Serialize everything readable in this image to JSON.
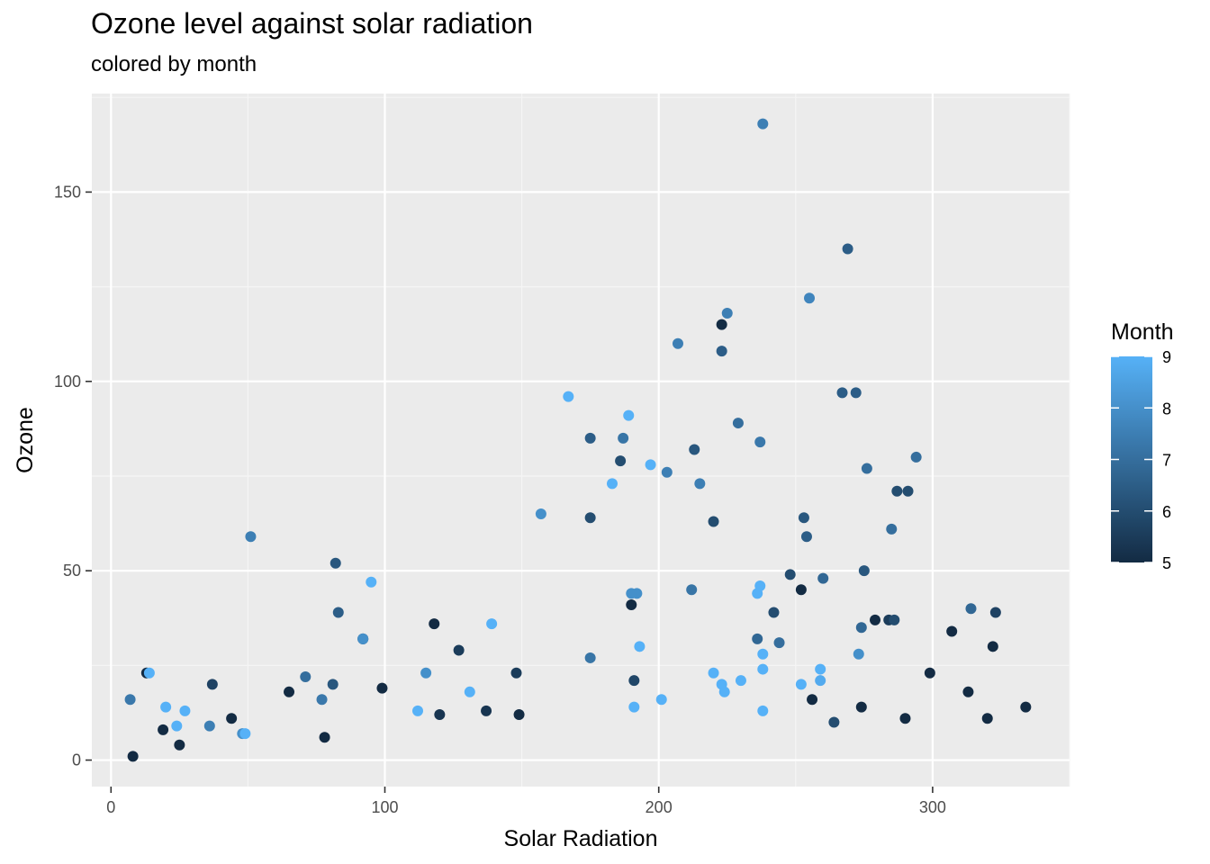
{
  "chart_data": {
    "type": "scatter",
    "title": "Ozone level against solar radiation",
    "subtitle": "colored by month",
    "xlabel": "Solar Radiation",
    "ylabel": "Ozone",
    "xlim": [
      -7,
      350
    ],
    "ylim": [
      -7,
      176
    ],
    "xticks": [
      0,
      100,
      200,
      300
    ],
    "yticks": [
      0,
      50,
      100,
      150
    ],
    "grid": true,
    "legend": {
      "title": "Month",
      "placement": "right",
      "min": 5,
      "max": 9,
      "ticks": [
        5,
        6,
        7,
        8,
        9
      ],
      "color_low": "#132B43",
      "color_high": "#56B1F7"
    },
    "colors": {
      "panel_background": "#EBEBEB",
      "grid_major": "#FFFFFF",
      "grid_minor": "#F5F5F5"
    },
    "points": [
      {
        "x": 190,
        "y": 41,
        "month": 5
      },
      {
        "x": 118,
        "y": 36,
        "month": 5
      },
      {
        "x": 149,
        "y": 12,
        "month": 5
      },
      {
        "x": 313,
        "y": 18,
        "month": 5
      },
      {
        "x": 299,
        "y": 23,
        "month": 5
      },
      {
        "x": 99,
        "y": 19,
        "month": 5
      },
      {
        "x": 19,
        "y": 8,
        "month": 5
      },
      {
        "x": 256,
        "y": 16,
        "month": 5
      },
      {
        "x": 290,
        "y": 11,
        "month": 5
      },
      {
        "x": 274,
        "y": 14,
        "month": 5
      },
      {
        "x": 65,
        "y": 18,
        "month": 5
      },
      {
        "x": 334,
        "y": 14,
        "month": 5
      },
      {
        "x": 307,
        "y": 34,
        "month": 5
      },
      {
        "x": 78,
        "y": 6,
        "month": 5
      },
      {
        "x": 322,
        "y": 30,
        "month": 5
      },
      {
        "x": 44,
        "y": 11,
        "month": 5
      },
      {
        "x": 8,
        "y": 1,
        "month": 5
      },
      {
        "x": 320,
        "y": 11,
        "month": 5
      },
      {
        "x": 25,
        "y": 4,
        "month": 5
      },
      {
        "x": 92,
        "y": 32,
        "month": 5
      },
      {
        "x": 13,
        "y": 23,
        "month": 5
      },
      {
        "x": 252,
        "y": 45,
        "month": 5
      },
      {
        "x": 223,
        "y": 115,
        "month": 5
      },
      {
        "x": 279,
        "y": 37,
        "month": 5
      },
      {
        "x": 120,
        "y": 12,
        "month": 5.3
      },
      {
        "x": 137,
        "y": 13,
        "month": 5.3
      },
      {
        "x": 148,
        "y": 23,
        "month": 5.5
      },
      {
        "x": 127,
        "y": 29,
        "month": 5.5
      },
      {
        "x": 284,
        "y": 37,
        "month": 5.5
      },
      {
        "x": 323,
        "y": 39,
        "month": 5.7
      },
      {
        "x": 37,
        "y": 20,
        "month": 5.7
      },
      {
        "x": 191,
        "y": 21,
        "month": 5.8
      },
      {
        "x": 286,
        "y": 37,
        "month": 6
      },
      {
        "x": 287,
        "y": 71,
        "month": 6
      },
      {
        "x": 242,
        "y": 39,
        "month": 6
      },
      {
        "x": 186,
        "y": 79,
        "month": 6
      },
      {
        "x": 220,
        "y": 63,
        "month": 6
      },
      {
        "x": 264,
        "y": 10,
        "month": 6
      },
      {
        "x": 175,
        "y": 64,
        "month": 6
      },
      {
        "x": 248,
        "y": 49,
        "month": 6
      },
      {
        "x": 291,
        "y": 71,
        "month": 6
      },
      {
        "x": 81,
        "y": 20,
        "month": 6.3
      },
      {
        "x": 82,
        "y": 52,
        "month": 6.3
      },
      {
        "x": 213,
        "y": 82,
        "month": 6.3
      },
      {
        "x": 275,
        "y": 50,
        "month": 6.3
      },
      {
        "x": 253,
        "y": 64,
        "month": 6.3
      },
      {
        "x": 254,
        "y": 59,
        "month": 6.5
      },
      {
        "x": 83,
        "y": 39,
        "month": 6.5
      },
      {
        "x": 223,
        "y": 108,
        "month": 6.5
      },
      {
        "x": 269,
        "y": 135,
        "month": 6.5
      },
      {
        "x": 267,
        "y": 97,
        "month": 6.5
      },
      {
        "x": 272,
        "y": 97,
        "month": 6.5
      },
      {
        "x": 175,
        "y": 85,
        "month": 6.5
      },
      {
        "x": 274,
        "y": 35,
        "month": 6.8
      },
      {
        "x": 260,
        "y": 48,
        "month": 6.8
      },
      {
        "x": 236,
        "y": 32,
        "month": 6.8
      },
      {
        "x": 314,
        "y": 40,
        "month": 6.8
      },
      {
        "x": 71,
        "y": 22,
        "month": 7
      },
      {
        "x": 276,
        "y": 77,
        "month": 7
      },
      {
        "x": 285,
        "y": 61,
        "month": 7
      },
      {
        "x": 294,
        "y": 80,
        "month": 7
      },
      {
        "x": 244,
        "y": 31,
        "month": 7
      },
      {
        "x": 229,
        "y": 89,
        "month": 7
      },
      {
        "x": 212,
        "y": 45,
        "month": 7.2
      },
      {
        "x": 187,
        "y": 85,
        "month": 7.2
      },
      {
        "x": 175,
        "y": 27,
        "month": 7.2
      },
      {
        "x": 77,
        "y": 16,
        "month": 7.3
      },
      {
        "x": 92,
        "y": 32,
        "month": 7.3
      },
      {
        "x": 237,
        "y": 84,
        "month": 7.3
      },
      {
        "x": 7,
        "y": 16,
        "month": 7.3
      },
      {
        "x": 215,
        "y": 73,
        "month": 7.5
      },
      {
        "x": 238,
        "y": 168,
        "month": 7.5
      },
      {
        "x": 225,
        "y": 118,
        "month": 7.5
      },
      {
        "x": 207,
        "y": 110,
        "month": 7.5
      },
      {
        "x": 36,
        "y": 9,
        "month": 7.5
      },
      {
        "x": 203,
        "y": 76,
        "month": 7.5
      },
      {
        "x": 51,
        "y": 59,
        "month": 7.5
      },
      {
        "x": 255,
        "y": 122,
        "month": 7.7
      },
      {
        "x": 273,
        "y": 28,
        "month": 8
      },
      {
        "x": 92,
        "y": 32,
        "month": 8
      },
      {
        "x": 115,
        "y": 23,
        "month": 8
      },
      {
        "x": 192,
        "y": 44,
        "month": 8
      },
      {
        "x": 190,
        "y": 44,
        "month": 8
      },
      {
        "x": 48,
        "y": 7,
        "month": 8
      },
      {
        "x": 157,
        "y": 65,
        "month": 8
      },
      {
        "x": 167,
        "y": 96,
        "month": 9
      },
      {
        "x": 197,
        "y": 78,
        "month": 9
      },
      {
        "x": 183,
        "y": 73,
        "month": 9
      },
      {
        "x": 189,
        "y": 91,
        "month": 9
      },
      {
        "x": 95,
        "y": 47,
        "month": 9
      },
      {
        "x": 223,
        "y": 20,
        "month": 9
      },
      {
        "x": 224,
        "y": 18,
        "month": 9
      },
      {
        "x": 238,
        "y": 28,
        "month": 9
      },
      {
        "x": 193,
        "y": 30,
        "month": 9
      },
      {
        "x": 139,
        "y": 36,
        "month": 9
      },
      {
        "x": 201,
        "y": 16,
        "month": 9
      },
      {
        "x": 191,
        "y": 14,
        "month": 9
      },
      {
        "x": 131,
        "y": 18,
        "month": 9
      },
      {
        "x": 236,
        "y": 44,
        "month": 9
      },
      {
        "x": 237,
        "y": 46,
        "month": 9
      },
      {
        "x": 238,
        "y": 24,
        "month": 9
      },
      {
        "x": 238,
        "y": 13,
        "month": 9
      },
      {
        "x": 230,
        "y": 21,
        "month": 9
      },
      {
        "x": 220,
        "y": 23,
        "month": 9
      },
      {
        "x": 259,
        "y": 24,
        "month": 9
      },
      {
        "x": 259,
        "y": 21,
        "month": 8.8
      },
      {
        "x": 252,
        "y": 20,
        "month": 9
      },
      {
        "x": 112,
        "y": 13,
        "month": 9
      },
      {
        "x": 14,
        "y": 23,
        "month": 9
      },
      {
        "x": 20,
        "y": 14,
        "month": 9
      },
      {
        "x": 24,
        "y": 9,
        "month": 9
      },
      {
        "x": 27,
        "y": 13,
        "month": 9
      },
      {
        "x": 49,
        "y": 7,
        "month": 9
      }
    ]
  }
}
